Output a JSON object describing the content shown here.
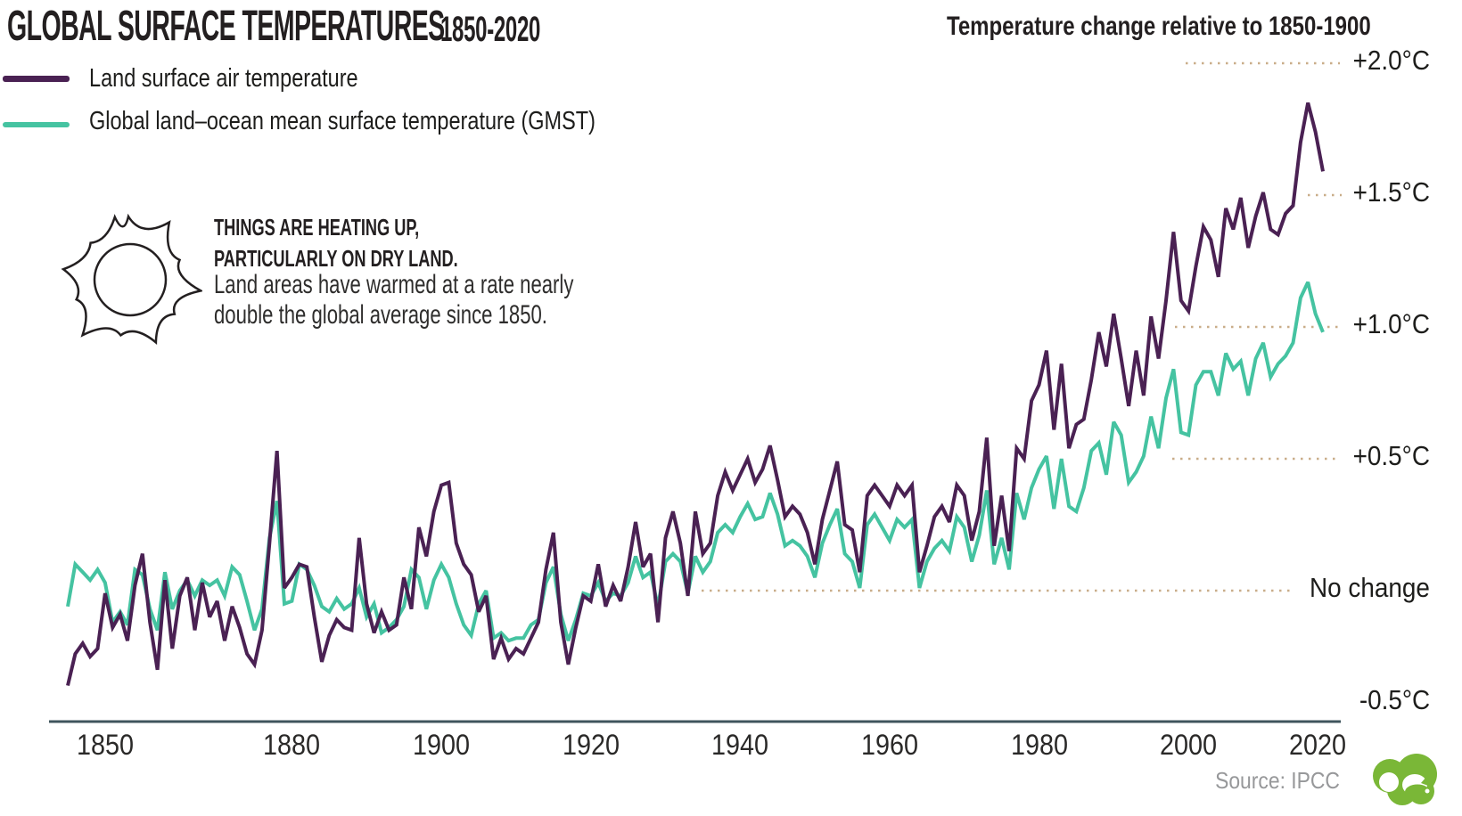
{
  "header": {
    "title": "GLOBAL SURFACE TEMPERATURES",
    "title_years": "1850-2020",
    "right_label": "Temperature change relative to 1850-1900"
  },
  "legend": [
    {
      "label": "Land surface air temperature",
      "color": "#4a2153"
    },
    {
      "label": "Global land–ocean mean surface temperature (GMST)",
      "color": "#45c3a1"
    }
  ],
  "annotation": {
    "icon": "sun-icon",
    "headline_line1": "THINGS ARE HEATING UP,",
    "headline_line2": "PARTICULARLY ON DRY LAND.",
    "body_line1": "Land areas have warmed at a rate nearly",
    "body_line2": "double the global average since 1850."
  },
  "source": "Source: IPCC",
  "logo_color": "#7ab737",
  "chart_data": {
    "type": "line",
    "title": "GLOBAL SURFACE TEMPERATURES 1850-2020",
    "y_axis_title": "Temperature change relative to 1850-1900",
    "x_tick_labels": [
      "1850",
      "1880",
      "1900",
      "1920",
      "1940",
      "1960",
      "1980",
      "2000",
      "2020"
    ],
    "y_axis_labels": [
      {
        "text": "+2.0°C",
        "value": 2.0
      },
      {
        "text": "+1.5°C",
        "value": 1.5
      },
      {
        "text": "+1.0°C",
        "value": 1.0
      },
      {
        "text": "+0.5°C",
        "value": 0.5
      },
      {
        "text": "No change",
        "value": 0.0
      },
      {
        "text": "-0.5°C",
        "value": -0.5
      }
    ],
    "years_start": 1850,
    "years_end": 2018,
    "ylim": [
      -0.5,
      2.0
    ],
    "grid": "horizontal dotted lines labeled on right",
    "series": [
      {
        "name": "Land surface air temperature",
        "color": "#4a2153",
        "values": [
          -0.36,
          -0.24,
          -0.2,
          -0.25,
          -0.22,
          -0.01,
          -0.14,
          -0.09,
          -0.19,
          0.02,
          0.14,
          -0.12,
          -0.3,
          0.04,
          -0.22,
          -0.02,
          0.05,
          -0.15,
          0.03,
          -0.1,
          -0.04,
          -0.19,
          -0.06,
          -0.14,
          -0.24,
          -0.28,
          -0.15,
          0.18,
          0.53,
          0.01,
          0.05,
          0.1,
          0.09,
          -0.1,
          -0.27,
          -0.17,
          -0.11,
          -0.14,
          -0.15,
          0.2,
          -0.05,
          -0.16,
          -0.08,
          -0.15,
          -0.13,
          0.05,
          -0.07,
          0.24,
          0.13,
          0.3,
          0.4,
          0.41,
          0.18,
          0.1,
          0.06,
          -0.08,
          -0.02,
          -0.26,
          -0.18,
          -0.26,
          -0.22,
          -0.24,
          -0.18,
          -0.12,
          0.08,
          0.22,
          -0.12,
          -0.28,
          -0.14,
          -0.02,
          -0.04,
          0.1,
          -0.06,
          0.02,
          -0.04,
          0.09,
          0.26,
          0.09,
          0.14,
          -0.12,
          0.2,
          0.3,
          0.18,
          -0.02,
          0.3,
          0.14,
          0.18,
          0.36,
          0.45,
          0.38,
          0.44,
          0.5,
          0.41,
          0.46,
          0.55,
          0.42,
          0.28,
          0.32,
          0.29,
          0.22,
          0.1,
          0.27,
          0.38,
          0.49,
          0.25,
          0.23,
          0.07,
          0.36,
          0.4,
          0.36,
          0.32,
          0.4,
          0.36,
          0.4,
          0.07,
          0.17,
          0.28,
          0.32,
          0.26,
          0.4,
          0.36,
          0.19,
          0.3,
          0.58,
          0.17,
          0.36,
          0.15,
          0.54,
          0.5,
          0.72,
          0.78,
          0.91,
          0.61,
          0.86,
          0.54,
          0.63,
          0.65,
          0.8,
          0.98,
          0.85,
          1.05,
          0.88,
          0.7,
          0.91,
          0.74,
          1.04,
          0.88,
          1.1,
          1.36,
          1.1,
          1.06,
          1.23,
          1.38,
          1.33,
          1.19,
          1.45,
          1.37,
          1.49,
          1.3,
          1.42,
          1.51,
          1.37,
          1.35,
          1.43,
          1.46,
          1.7,
          1.85,
          1.74,
          1.59
        ]
      },
      {
        "name": "Global land–ocean mean surface temperature (GMST)",
        "color": "#45c3a1",
        "values": [
          -0.06,
          0.1,
          0.07,
          0.04,
          0.08,
          0.03,
          -0.12,
          -0.08,
          -0.13,
          0.08,
          0.06,
          -0.07,
          -0.15,
          0.07,
          -0.07,
          0.0,
          0.04,
          -0.02,
          0.04,
          0.02,
          0.04,
          -0.02,
          0.09,
          0.06,
          -0.04,
          -0.15,
          -0.07,
          0.2,
          0.34,
          -0.05,
          -0.04,
          0.1,
          0.08,
          0.02,
          -0.06,
          -0.08,
          -0.03,
          -0.07,
          -0.05,
          0.01,
          -0.1,
          -0.05,
          -0.16,
          -0.14,
          -0.11,
          -0.06,
          0.08,
          0.05,
          -0.07,
          0.04,
          0.1,
          0.05,
          -0.05,
          -0.13,
          -0.17,
          -0.05,
          0.0,
          -0.18,
          -0.16,
          -0.19,
          -0.18,
          -0.18,
          -0.13,
          -0.11,
          0.03,
          0.09,
          -0.09,
          -0.19,
          -0.11,
          -0.01,
          -0.02,
          0.03,
          -0.04,
          -0.01,
          -0.02,
          0.03,
          0.13,
          0.05,
          0.07,
          -0.06,
          0.11,
          0.14,
          0.11,
          -0.01,
          0.13,
          0.07,
          0.11,
          0.22,
          0.25,
          0.22,
          0.28,
          0.33,
          0.27,
          0.28,
          0.37,
          0.29,
          0.17,
          0.19,
          0.17,
          0.13,
          0.05,
          0.18,
          0.25,
          0.31,
          0.14,
          0.11,
          0.01,
          0.25,
          0.29,
          0.24,
          0.19,
          0.27,
          0.24,
          0.27,
          0.01,
          0.11,
          0.16,
          0.19,
          0.15,
          0.28,
          0.24,
          0.11,
          0.21,
          0.38,
          0.1,
          0.2,
          0.08,
          0.37,
          0.27,
          0.39,
          0.46,
          0.51,
          0.31,
          0.5,
          0.32,
          0.3,
          0.39,
          0.53,
          0.56,
          0.44,
          0.64,
          0.59,
          0.41,
          0.45,
          0.51,
          0.66,
          0.54,
          0.73,
          0.84,
          0.6,
          0.59,
          0.78,
          0.83,
          0.83,
          0.74,
          0.9,
          0.84,
          0.87,
          0.74,
          0.88,
          0.94,
          0.81,
          0.86,
          0.89,
          0.94,
          1.11,
          1.17,
          1.05,
          0.98
        ]
      }
    ]
  }
}
